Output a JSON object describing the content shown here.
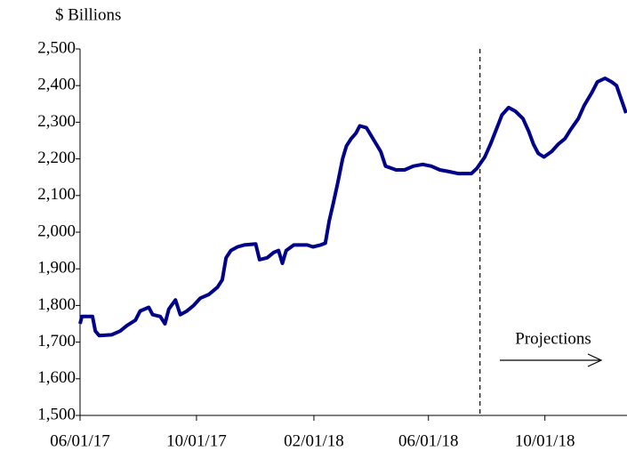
{
  "chart_data": {
    "type": "line",
    "y_axis_label": "$ Billions",
    "annotation": "Projections",
    "projection_start": "07/25/18",
    "xlim": [
      "06/01/17",
      "12/26/18"
    ],
    "xticks": [
      "06/01/17",
      "10/01/17",
      "02/01/18",
      "06/01/18",
      "10/01/18"
    ],
    "ylim": [
      1500,
      2500
    ],
    "yticks": [
      {
        "value": 1500,
        "label": "1,500"
      },
      {
        "value": 1600,
        "label": "1,600"
      },
      {
        "value": 1700,
        "label": "1,700"
      },
      {
        "value": 1800,
        "label": "1,800"
      },
      {
        "value": 1900,
        "label": "1,900"
      },
      {
        "value": 2000,
        "label": "2,000"
      },
      {
        "value": 2100,
        "label": "2,100"
      },
      {
        "value": 2200,
        "label": "2,200"
      },
      {
        "value": 2300,
        "label": "2,300"
      },
      {
        "value": 2400,
        "label": "2,400"
      },
      {
        "value": 2500,
        "label": "2,500"
      }
    ],
    "color": "#00008b",
    "x": [
      "06/01/17",
      "06/03/17",
      "06/14/17",
      "06/17/17",
      "06/21/17",
      "07/04/17",
      "07/13/17",
      "07/20/17",
      "07/29/17",
      "08/03/17",
      "08/12/17",
      "08/16/17",
      "08/24/17",
      "08/29/17",
      "09/02/17",
      "09/09/17",
      "09/14/17",
      "09/21/17",
      "09/28/17",
      "10/05/17",
      "10/14/17",
      "10/23/17",
      "10/28/17",
      "11/01/17",
      "11/06/17",
      "11/13/17",
      "11/20/17",
      "12/02/17",
      "12/06/17",
      "12/14/17",
      "12/21/17",
      "12/26/17",
      "12/30/17",
      "01/03/18",
      "01/11/18",
      "01/25/18",
      "01/31/18",
      "02/08/18",
      "02/13/18",
      "02/17/18",
      "02/21/18",
      "02/26/18",
      "03/03/18",
      "03/07/18",
      "03/12/18",
      "03/17/18",
      "03/21/18",
      "03/28/18",
      "04/12/18",
      "04/17/18",
      "04/28/18",
      "05/07/18",
      "05/16/18",
      "05/26/18",
      "06/04/18",
      "06/13/18",
      "06/23/18",
      "07/02/18",
      "07/16/18",
      "07/22/18",
      "07/30/18",
      "08/05/18",
      "08/11/18",
      "08/17/18",
      "08/24/18",
      "08/31/18",
      "09/08/18",
      "09/14/18",
      "09/19/18",
      "09/24/18",
      "09/30/18",
      "10/08/18",
      "10/15/18",
      "10/22/18",
      "10/28/18",
      "11/05/18",
      "11/11/18",
      "11/19/18",
      "11/25/18",
      "12/03/18",
      "12/10/18",
      "12/15/18",
      "12/19/18",
      "12/25/18"
    ],
    "values": [
      1750,
      1770,
      1770,
      1730,
      1718,
      1720,
      1730,
      1745,
      1760,
      1785,
      1795,
      1775,
      1770,
      1750,
      1790,
      1815,
      1775,
      1785,
      1800,
      1820,
      1830,
      1850,
      1870,
      1930,
      1950,
      1960,
      1965,
      1968,
      1925,
      1930,
      1945,
      1950,
      1915,
      1950,
      1965,
      1965,
      1960,
      1965,
      1970,
      2030,
      2075,
      2135,
      2200,
      2235,
      2255,
      2270,
      2290,
      2285,
      2220,
      2180,
      2170,
      2170,
      2180,
      2185,
      2180,
      2170,
      2165,
      2160,
      2160,
      2175,
      2205,
      2240,
      2280,
      2320,
      2340,
      2330,
      2310,
      2275,
      2240,
      2215,
      2205,
      2220,
      2240,
      2255,
      2280,
      2310,
      2345,
      2380,
      2410,
      2420,
      2410,
      2400,
      2370,
      2325
    ]
  }
}
